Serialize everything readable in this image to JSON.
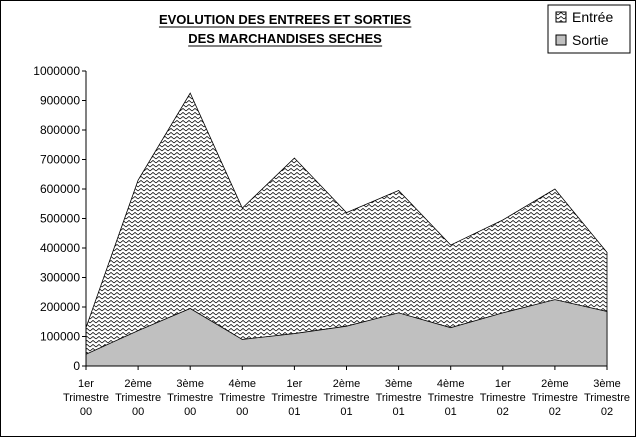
{
  "chart_data": {
    "type": "area",
    "title_lines": [
      "EVOLUTION DES ENTREES ET SORTIES",
      "DES MARCHANDISES SECHES"
    ],
    "categories": [
      [
        "1er",
        "Trimestre",
        "00"
      ],
      [
        "2ème",
        "Trimestre",
        "00"
      ],
      [
        "3ème",
        "Trimestre",
        "00"
      ],
      [
        "4ème",
        "Trimestre",
        "00"
      ],
      [
        "1er",
        "Trimestre",
        "01"
      ],
      [
        "2ème",
        "Trimestre",
        "01"
      ],
      [
        "3ème",
        "Trimestre",
        "01"
      ],
      [
        "4ème",
        "Trimestre",
        "01"
      ],
      [
        "1er",
        "Trimestre",
        "02"
      ],
      [
        "2ème",
        "Trimestre",
        "02"
      ],
      [
        "3ème",
        "Trimestre",
        "02"
      ]
    ],
    "series": [
      {
        "name": "Entrée",
        "values": [
          130000,
          630000,
          925000,
          535000,
          705000,
          520000,
          595000,
          410000,
          495000,
          600000,
          385000
        ],
        "fill": "crosshatch"
      },
      {
        "name": "Sortie",
        "values": [
          40000,
          120000,
          195000,
          90000,
          110000,
          135000,
          180000,
          130000,
          180000,
          225000,
          185000
        ],
        "fill": "#c0c0c0"
      }
    ],
    "yticks": [
      "0",
      "100000",
      "200000",
      "300000",
      "400000",
      "500000",
      "600000",
      "700000",
      "800000",
      "900000",
      "1000000"
    ],
    "ylim": [
      0,
      1000000
    ],
    "grid": false,
    "legend": "top-right",
    "colors": {
      "sortie": "#c0c0c0",
      "background": "#ffffff",
      "line": "#000000"
    }
  }
}
